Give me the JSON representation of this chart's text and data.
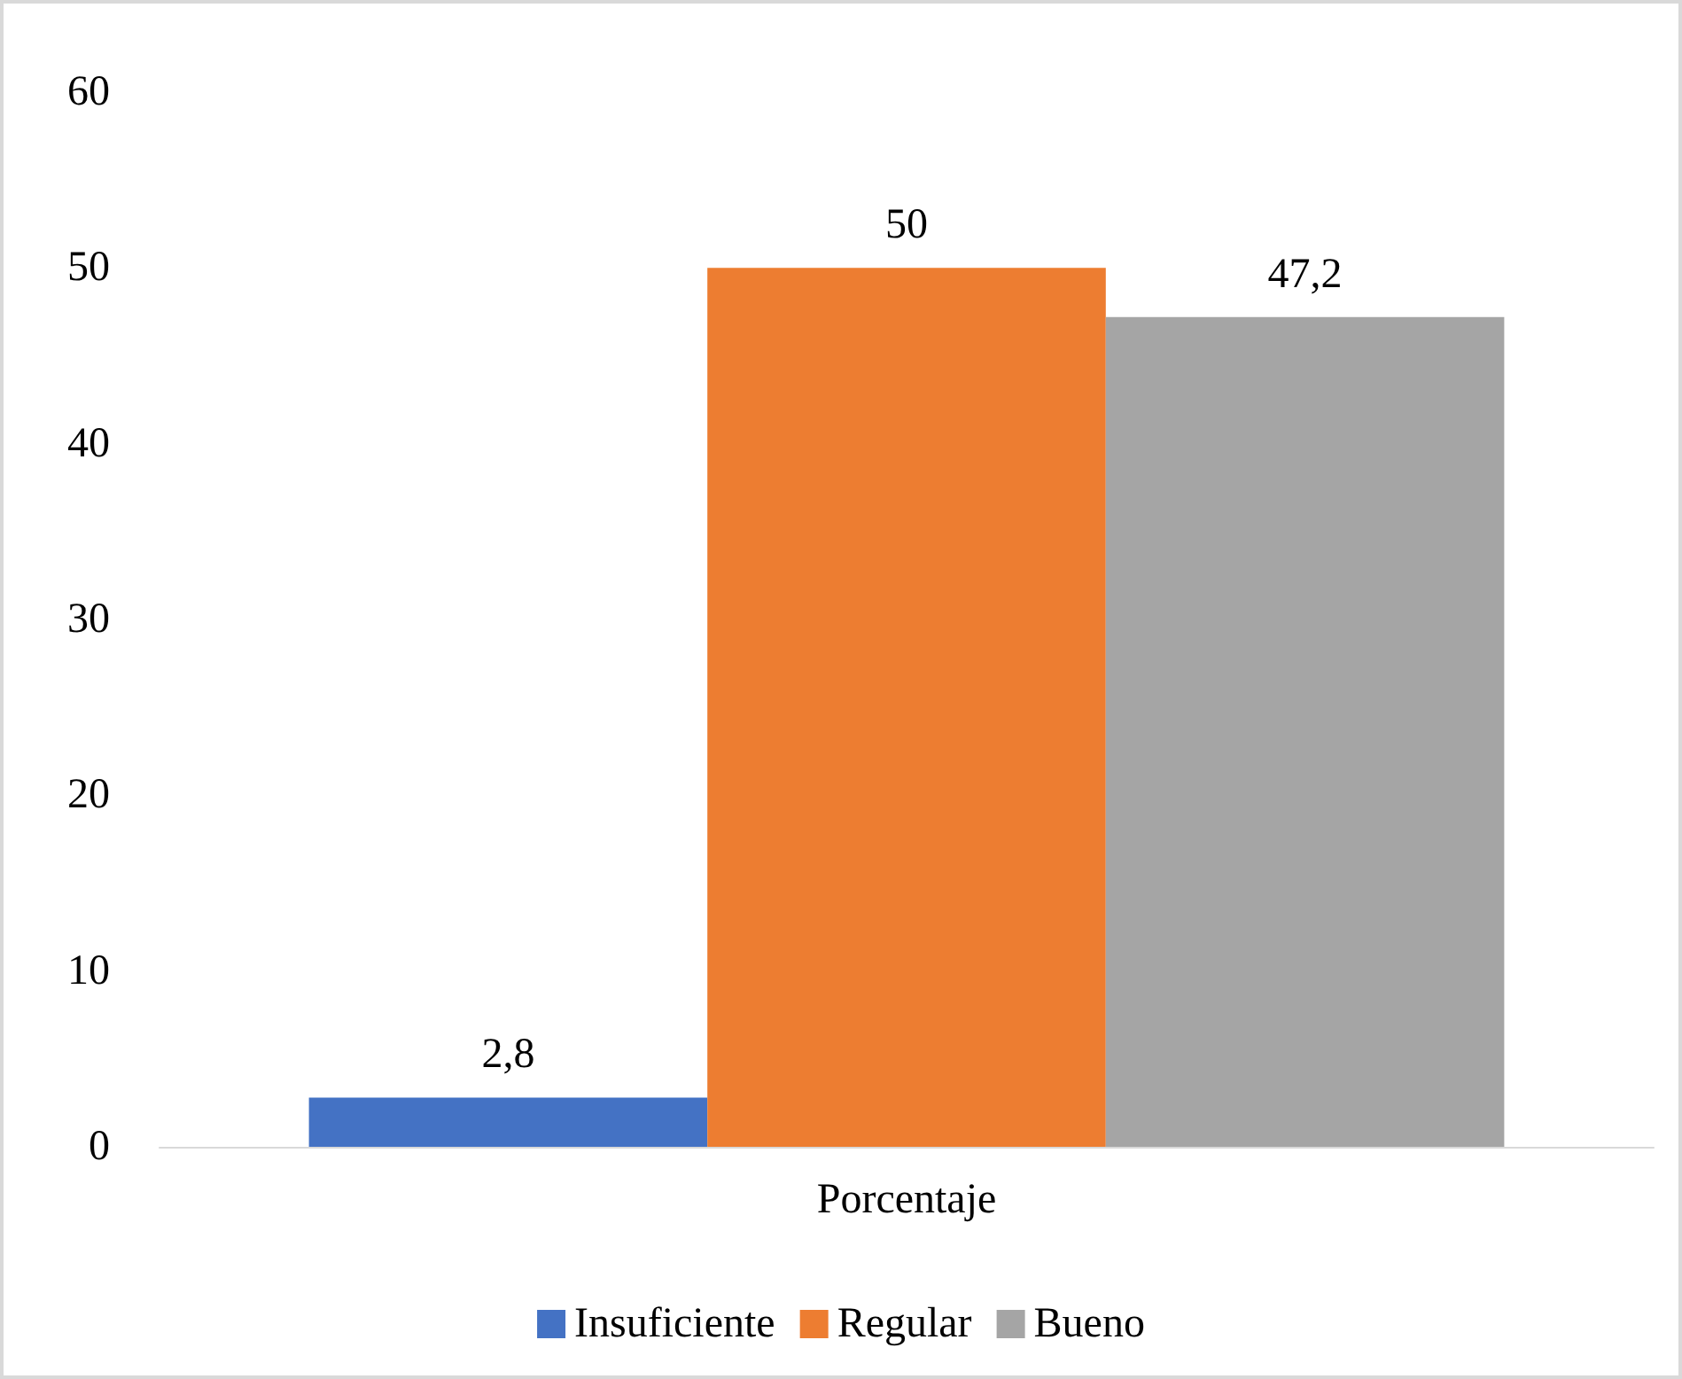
{
  "chart_data": {
    "type": "bar",
    "categories": [
      "Porcentaje"
    ],
    "series": [
      {
        "name": "Insuficiente",
        "color": "#4472c4",
        "values": [
          2.8
        ],
        "value_labels": [
          "2,8"
        ]
      },
      {
        "name": "Regular",
        "color": "#ed7d31",
        "values": [
          50
        ],
        "value_labels": [
          "50"
        ]
      },
      {
        "name": "Bueno",
        "color": "#a5a5a5",
        "values": [
          47.2
        ],
        "value_labels": [
          "47,2"
        ]
      }
    ],
    "ylim": [
      0,
      60
    ],
    "yticks": [
      0,
      10,
      20,
      30,
      40,
      50,
      60
    ],
    "grid": false,
    "legend": "bottom"
  }
}
